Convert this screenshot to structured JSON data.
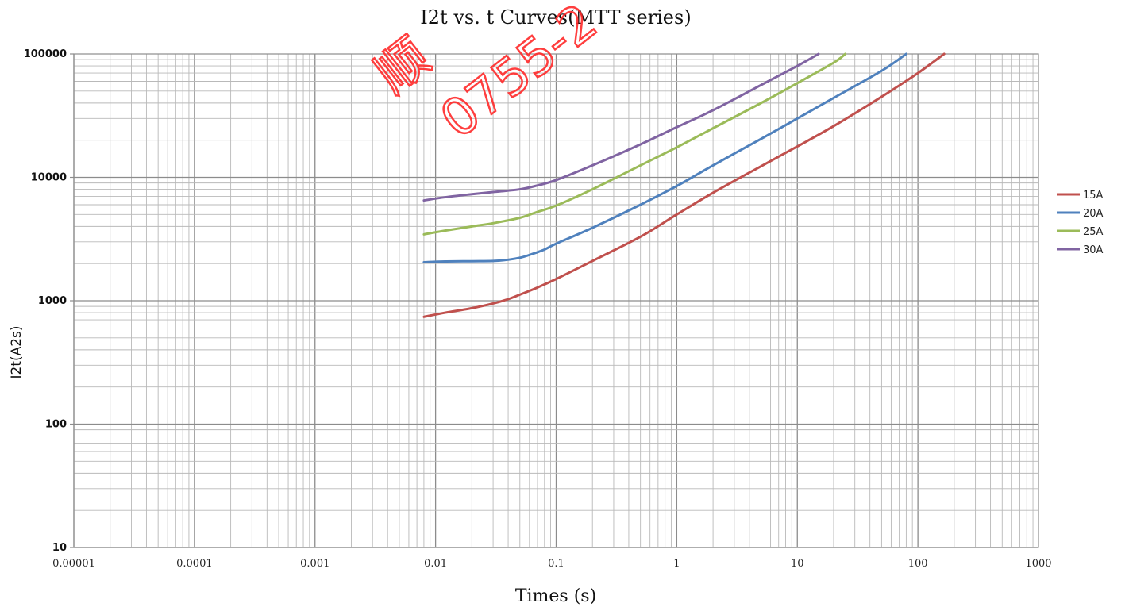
{
  "chart_data": {
    "type": "line",
    "title": "I2t  vs.  t  Curves(MTT series)",
    "xlabel": "Times (s)",
    "ylabel": "I2t(A2s)",
    "x_scale": "log",
    "y_scale": "log",
    "xlim": [
      1e-05,
      1000
    ],
    "ylim": [
      10,
      100000
    ],
    "x_ticks": [
      "0.00001",
      "0.0001",
      "0.001",
      "0.01",
      "0.1",
      "1",
      "10",
      "100",
      "1000"
    ],
    "y_ticks": [
      "10",
      "100",
      "1000",
      "10000",
      "100000"
    ],
    "grid": true,
    "legend_position": "right",
    "series": [
      {
        "name": "15A",
        "color": "#c0504d",
        "points": [
          [
            0.008,
            740
          ],
          [
            0.012,
            800
          ],
          [
            0.02,
            870
          ],
          [
            0.03,
            950
          ],
          [
            0.04,
            1030
          ],
          [
            0.05,
            1120
          ],
          [
            0.07,
            1280
          ],
          [
            0.1,
            1500
          ],
          [
            0.2,
            2100
          ],
          [
            0.5,
            3300
          ],
          [
            1,
            5000
          ],
          [
            2,
            7500
          ],
          [
            5,
            12300
          ],
          [
            10,
            17800
          ],
          [
            20,
            26000
          ],
          [
            50,
            45000
          ],
          [
            100,
            70000
          ],
          [
            165,
            100000
          ]
        ]
      },
      {
        "name": "20A",
        "color": "#4f81bd",
        "points": [
          [
            0.008,
            2050
          ],
          [
            0.012,
            2080
          ],
          [
            0.02,
            2090
          ],
          [
            0.03,
            2100
          ],
          [
            0.04,
            2150
          ],
          [
            0.05,
            2230
          ],
          [
            0.06,
            2350
          ],
          [
            0.08,
            2600
          ],
          [
            0.1,
            2900
          ],
          [
            0.2,
            3900
          ],
          [
            0.5,
            6000
          ],
          [
            1,
            8500
          ],
          [
            2,
            12500
          ],
          [
            5,
            20500
          ],
          [
            10,
            30000
          ],
          [
            20,
            44000
          ],
          [
            50,
            73000
          ],
          [
            80,
            100000
          ]
        ]
      },
      {
        "name": "25A",
        "color": "#9bbb59",
        "points": [
          [
            0.008,
            3450
          ],
          [
            0.012,
            3700
          ],
          [
            0.02,
            4000
          ],
          [
            0.03,
            4250
          ],
          [
            0.05,
            4700
          ],
          [
            0.07,
            5250
          ],
          [
            0.1,
            5900
          ],
          [
            0.2,
            8000
          ],
          [
            0.5,
            12500
          ],
          [
            1,
            17500
          ],
          [
            2,
            25000
          ],
          [
            5,
            40000
          ],
          [
            10,
            58000
          ],
          [
            20,
            85000
          ],
          [
            25,
            100000
          ]
        ]
      },
      {
        "name": "30A",
        "color": "#8064a2",
        "points": [
          [
            0.008,
            6500
          ],
          [
            0.012,
            6900
          ],
          [
            0.02,
            7300
          ],
          [
            0.03,
            7600
          ],
          [
            0.05,
            8000
          ],
          [
            0.07,
            8600
          ],
          [
            0.1,
            9500
          ],
          [
            0.2,
            12500
          ],
          [
            0.5,
            18500
          ],
          [
            1,
            25500
          ],
          [
            2,
            35000
          ],
          [
            5,
            56000
          ],
          [
            10,
            80000
          ],
          [
            15,
            100000
          ]
        ]
      }
    ]
  },
  "watermark": {
    "line1": "顺",
    "line2": "0755-2"
  }
}
